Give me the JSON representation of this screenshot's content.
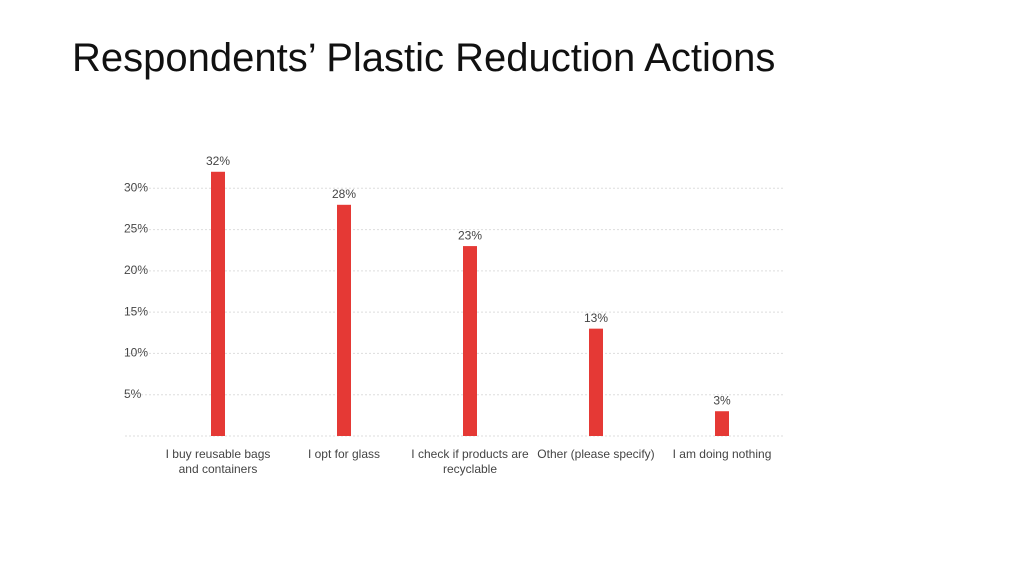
{
  "chart_data": {
    "type": "bar",
    "title": "Respondents’ Plastic Reduction Actions",
    "categories": [
      "I buy reusable bags and containers",
      "I opt for glass",
      "I check if products are recyclable",
      "Other (please specify)",
      "I am doing nothing"
    ],
    "values": [
      32,
      28,
      23,
      13,
      3
    ],
    "value_labels": [
      "32%",
      "28%",
      "23%",
      "13%",
      "3%"
    ],
    "color": "#e53935",
    "ylim": [
      0,
      35
    ],
    "yticks": [
      {
        "value": 5,
        "label": "5%"
      },
      {
        "value": 10,
        "label": "10%"
      },
      {
        "value": 15,
        "label": "15%"
      },
      {
        "value": 20,
        "label": "20%"
      },
      {
        "value": 25,
        "label": "25%"
      },
      {
        "value": 30,
        "label": "30%"
      }
    ],
    "grid": true
  }
}
